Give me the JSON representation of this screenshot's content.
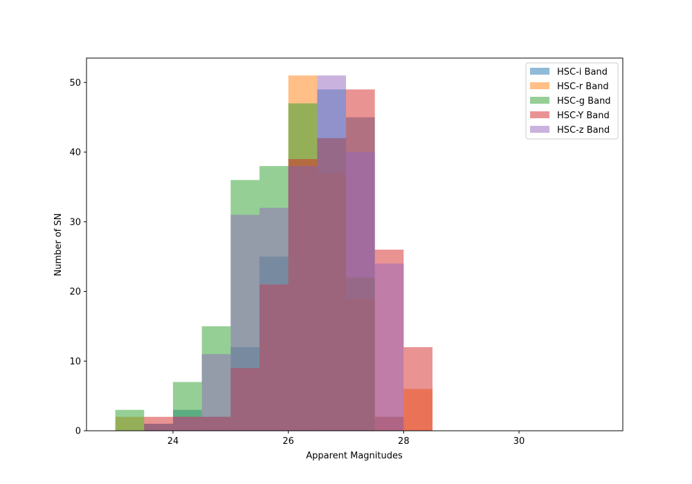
{
  "chart_data": {
    "type": "bar",
    "subtype": "overlapping-histogram",
    "xlabel": "Apparent Magnitudes",
    "ylabel": "Number of SN",
    "xlim": [
      22.5,
      31.8
    ],
    "ylim": [
      0,
      53.5
    ],
    "xticks": [
      24,
      26,
      28,
      30
    ],
    "yticks": [
      0,
      10,
      20,
      30,
      40,
      50
    ],
    "bin_edges": [
      23.0,
      23.5,
      24.0,
      24.5,
      25.0,
      25.5,
      26.0,
      26.5,
      27.0,
      27.5,
      28.0,
      28.5
    ],
    "bar_alpha": 0.5,
    "grid": false,
    "legend_position": "top-right",
    "series": [
      {
        "name": "HSC-i Band",
        "color": "#1f77b4",
        "values": [
          0,
          1,
          3,
          2,
          12,
          25,
          38,
          49,
          45,
          2,
          0
        ]
      },
      {
        "name": "HSC-r Band",
        "color": "#ff7f0e",
        "values": [
          2,
          1,
          2,
          2,
          9,
          21,
          51,
          37,
          19,
          2,
          6
        ]
      },
      {
        "name": "HSC-g Band",
        "color": "#2ca02c",
        "values": [
          3,
          1,
          7,
          15,
          36,
          38,
          47,
          42,
          22,
          0,
          0
        ]
      },
      {
        "name": "HSC-Y Band",
        "color": "#d62728",
        "values": [
          0,
          2,
          2,
          2,
          9,
          21,
          39,
          42,
          49,
          26,
          12
        ]
      },
      {
        "name": "HSC-z Band",
        "color": "#9467bd",
        "values": [
          0,
          1,
          2,
          11,
          31,
          32,
          38,
          51,
          40,
          24,
          0
        ]
      }
    ]
  }
}
